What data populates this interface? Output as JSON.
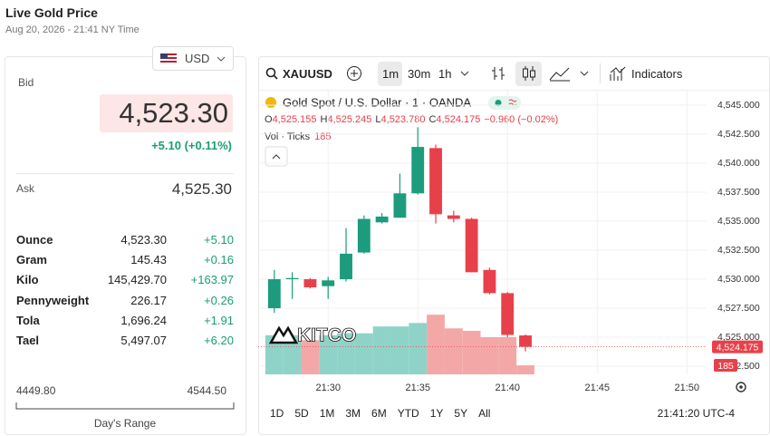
{
  "header": {
    "title": "Live Gold Price",
    "timestamp": "Aug 20, 2026 - 21:41 NY Time"
  },
  "quote": {
    "currency": "USD",
    "bid_label": "Bid",
    "bid": "4,523.30",
    "change": "+5.10 (+0.11%)",
    "ask_label": "Ask",
    "ask": "4,525.30",
    "rows": [
      [
        "Ounce",
        "4,523.30",
        "+5.10"
      ],
      [
        "Gram",
        "145.43",
        "+0.16"
      ],
      [
        "Kilo",
        "145,429.70",
        "+163.97"
      ],
      [
        "Pennyweight",
        "226.17",
        "+0.26"
      ],
      [
        "Tola",
        "1,696.24",
        "+1.91"
      ],
      [
        "Tael",
        "5,497.07",
        "+6.20"
      ]
    ],
    "range_low": "4449.80",
    "range_high": "4544.50",
    "range_label": "Day's Range"
  },
  "toolbar": {
    "symbol": "XAUUSD",
    "intervals": [
      "1m",
      "30m",
      "1h"
    ],
    "indicators": "Indicators"
  },
  "legend": {
    "title": "Gold Spot / U.S. Dollar · 1 · OANDA",
    "ohlc": [
      [
        "O",
        "4,525.155"
      ],
      [
        "H",
        "4,525.245"
      ],
      [
        "L",
        "4,523.780"
      ],
      [
        "C",
        "4,524.175"
      ]
    ],
    "change": "−0.960 (−0.02%)",
    "volume_label": "Vol · Ticks"
  },
  "chart": {
    "type": "candlestick",
    "x": [
      27,
      28,
      29,
      30,
      31,
      32,
      33,
      34,
      35,
      36,
      37,
      38,
      39,
      40,
      41
    ],
    "open": [
      4527.5,
      4530.0,
      4530.0,
      4529.4,
      4530.0,
      4532.3,
      4534.9,
      4535.3,
      4537.4,
      4541.3,
      4535.5,
      4535.2,
      4530.8,
      4528.8,
      4525.155
    ],
    "high": [
      4530.8,
      4530.6,
      4530.1,
      4530.2,
      4534.4,
      4535.5,
      4535.7,
      4539.1,
      4543.1,
      4541.6,
      4535.9,
      4535.3,
      4531.0,
      4528.9,
      4525.245
    ],
    "low": [
      4527.1,
      4528.3,
      4529.2,
      4528.3,
      4529.8,
      4532.2,
      4534.8,
      4535.3,
      4537.3,
      4534.8,
      4534.9,
      4530.6,
      4528.7,
      4525.0,
      4523.78
    ],
    "close": [
      4530.0,
      4530.1,
      4529.3,
      4529.9,
      4532.2,
      4535.2,
      4535.4,
      4537.4,
      4541.4,
      4535.6,
      4535.2,
      4530.6,
      4528.8,
      4525.2,
      4524.175
    ],
    "volume": [
      800,
      800,
      700,
      800,
      840,
      840,
      980,
      980,
      1050,
      1220,
      940,
      890,
      760,
      760,
      185
    ],
    "last_price_label": "4,524.175",
    "xlim": [
      26.1,
      51.1
    ],
    "xticks": [
      {
        "value": 30,
        "label": "21:30"
      },
      {
        "value": 35,
        "label": "21:35"
      },
      {
        "value": 40,
        "label": "21:40"
      },
      {
        "value": 45,
        "label": "21:45"
      },
      {
        "value": 50,
        "label": "21:50"
      }
    ],
    "ylim": [
      4521.8,
      4546.25
    ],
    "yticks": [
      {
        "value": 4545,
        "label": "4,545.000"
      },
      {
        "value": 4542.5,
        "label": "4,542.500"
      },
      {
        "value": 4540,
        "label": "4,540.000"
      },
      {
        "value": 4537.5,
        "label": "4,537.500"
      },
      {
        "value": 4535,
        "label": "4,535.000"
      },
      {
        "value": 4532.5,
        "label": "4,532.500"
      },
      {
        "value": 4530,
        "label": "4,530.000"
      },
      {
        "value": 4527.5,
        "label": "4,527.500"
      },
      {
        "value": 4525,
        "label": "4,525.000"
      },
      {
        "value": 4522.5,
        "label": "4,522.500"
      }
    ],
    "vlim": [
      0,
      5800
    ],
    "grid": true,
    "up_color": "#1c9c7c",
    "down_color": "#e8404a",
    "up_volume_color": "#8fd3c8",
    "down_volume_color": "#f4a7a7"
  },
  "ranges": [
    "1D",
    "5D",
    "1M",
    "3M",
    "6M",
    "YTD",
    "1Y",
    "5Y",
    "All"
  ],
  "clock": "21:41:20 UTC-4",
  "watermark": "KITCO"
}
